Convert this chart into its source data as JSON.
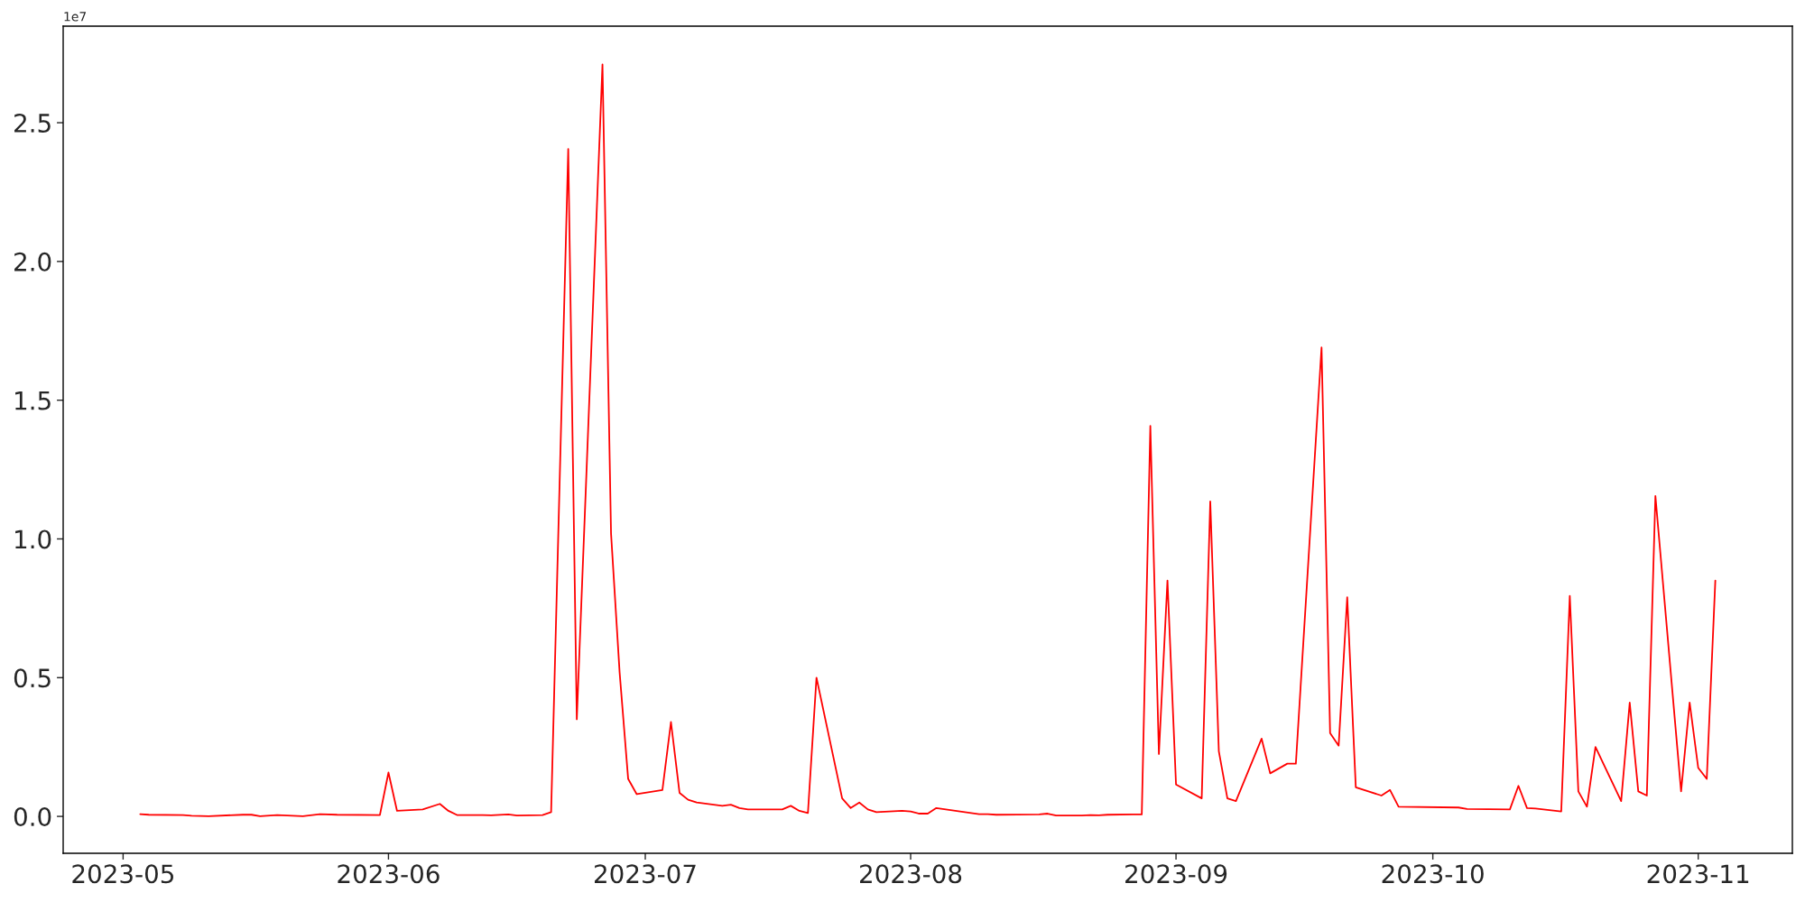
{
  "chart_data": {
    "type": "line",
    "x": [
      "2023-05-03",
      "2023-05-04",
      "2023-05-08",
      "2023-05-09",
      "2023-05-11",
      "2023-05-15",
      "2023-05-16",
      "2023-05-17",
      "2023-05-19",
      "2023-05-22",
      "2023-05-24",
      "2023-05-26",
      "2023-05-31",
      "2023-06-01",
      "2023-06-02",
      "2023-06-05",
      "2023-06-07",
      "2023-06-08",
      "2023-06-09",
      "2023-06-12",
      "2023-06-13",
      "2023-06-15",
      "2023-06-16",
      "2023-06-19",
      "2023-06-20",
      "2023-06-22",
      "2023-06-23",
      "2023-06-26",
      "2023-06-27",
      "2023-06-28",
      "2023-06-29",
      "2023-06-30",
      "2023-07-03",
      "2023-07-04",
      "2023-07-05",
      "2023-07-06",
      "2023-07-07",
      "2023-07-10",
      "2023-07-11",
      "2023-07-12",
      "2023-07-13",
      "2023-07-17",
      "2023-07-18",
      "2023-07-19",
      "2023-07-20",
      "2023-07-21",
      "2023-07-24",
      "2023-07-25",
      "2023-07-26",
      "2023-07-27",
      "2023-07-28",
      "2023-07-31",
      "2023-08-01",
      "2023-08-02",
      "2023-08-03",
      "2023-08-04",
      "2023-08-09",
      "2023-08-10",
      "2023-08-11",
      "2023-08-16",
      "2023-08-17",
      "2023-08-18",
      "2023-08-21",
      "2023-08-22",
      "2023-08-23",
      "2023-08-24",
      "2023-08-27",
      "2023-08-28",
      "2023-08-29",
      "2023-08-30",
      "2023-08-31",
      "2023-09-01",
      "2023-09-04",
      "2023-09-05",
      "2023-09-06",
      "2023-09-07",
      "2023-09-08",
      "2023-09-11",
      "2023-09-12",
      "2023-09-14",
      "2023-09-15",
      "2023-09-18",
      "2023-09-19",
      "2023-09-20",
      "2023-09-21",
      "2023-09-22",
      "2023-09-25",
      "2023-09-26",
      "2023-09-27",
      "2023-10-04",
      "2023-10-05",
      "2023-10-10",
      "2023-10-11",
      "2023-10-12",
      "2023-10-13",
      "2023-10-16",
      "2023-10-17",
      "2023-10-18",
      "2023-10-19",
      "2023-10-20",
      "2023-10-23",
      "2023-10-24",
      "2023-10-25",
      "2023-10-26",
      "2023-10-27",
      "2023-10-30",
      "2023-10-31",
      "2023-11-01",
      "2023-11-02",
      "2023-11-03"
    ],
    "series": [
      {
        "color": "#ff0000",
        "values": [
          0.008,
          0.006,
          0.005,
          0.002,
          0.001,
          0.006,
          0.006,
          0.001,
          0.005,
          0.001,
          0.008,
          0.006,
          0.005,
          0.158,
          0.02,
          0.025,
          0.045,
          0.02,
          0.005,
          0.005,
          0.004,
          0.007,
          0.003,
          0.005,
          0.015,
          2.405,
          0.35,
          2.71,
          1.02,
          0.52,
          0.135,
          0.08,
          0.095,
          0.34,
          0.085,
          0.06,
          0.05,
          0.038,
          0.042,
          0.03,
          0.025,
          0.025,
          0.038,
          0.02,
          0.012,
          0.5,
          0.065,
          0.03,
          0.05,
          0.025,
          0.015,
          0.02,
          0.018,
          0.01,
          0.01,
          0.03,
          0.008,
          0.008,
          0.006,
          0.007,
          0.01,
          0.003,
          0.003,
          0.005,
          0.004,
          0.006,
          0.007,
          0.007,
          1.407,
          0.225,
          0.85,
          0.115,
          0.065,
          1.135,
          0.235,
          0.065,
          0.055,
          0.28,
          0.155,
          0.19,
          0.19,
          1.69,
          0.3,
          0.255,
          0.79,
          0.105,
          0.075,
          0.095,
          0.035,
          0.032,
          0.027,
          0.025,
          0.11,
          0.03,
          0.028,
          0.018,
          0.795,
          0.09,
          0.035,
          0.25,
          0.055,
          0.41,
          0.09,
          0.075,
          1.155,
          0.09,
          0.41,
          0.175,
          0.135,
          0.85
        ]
      }
    ],
    "xlim": [
      "2023-04-24",
      "2023-11-12"
    ],
    "xticks": [
      {
        "value": "2023-05-01",
        "label": "2023-05"
      },
      {
        "value": "2023-06-01",
        "label": "2023-06"
      },
      {
        "value": "2023-07-01",
        "label": "2023-07"
      },
      {
        "value": "2023-08-01",
        "label": "2023-08"
      },
      {
        "value": "2023-09-01",
        "label": "2023-09"
      },
      {
        "value": "2023-10-01",
        "label": "2023-10"
      },
      {
        "value": "2023-11-01",
        "label": "2023-11"
      }
    ],
    "ylim": [
      -0.133,
      2.848
    ],
    "yticks": [
      {
        "value": 0,
        "label": "0.0"
      },
      {
        "value": 0.5,
        "label": "0.5"
      },
      {
        "value": 1,
        "label": "1.0"
      },
      {
        "value": 1.5,
        "label": "1.5"
      },
      {
        "value": 2,
        "label": "2.0"
      },
      {
        "value": 2.5,
        "label": "2.5"
      }
    ],
    "annotations": [
      "1e7"
    ],
    "grid": false,
    "line_style": "solid",
    "marker": "none"
  }
}
